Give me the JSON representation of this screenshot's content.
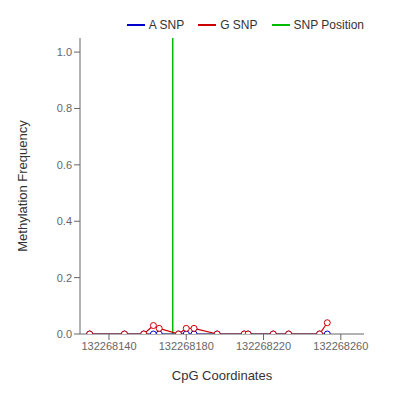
{
  "chart_data": {
    "type": "line",
    "xlabel": "CpG Coordinates",
    "ylabel": "Methylation Frequency",
    "x": [
      132268130,
      132268148,
      132268158,
      132268163,
      132268166,
      132268176,
      132268180,
      132268184,
      132268196,
      132268210,
      132268212,
      132268225,
      132268233,
      132268249,
      132268253
    ],
    "series": [
      {
        "name": "A SNP",
        "color": "#0000cc",
        "marker": "circle",
        "values": [
          0.0,
          0.0,
          0.0,
          0.0,
          0.0,
          0.0,
          0.0,
          0.0,
          0.0,
          0.0,
          0.0,
          0.0,
          0.0,
          0.0,
          0.0
        ]
      },
      {
        "name": "G SNP",
        "color": "#cc0000",
        "marker": "circle",
        "values": [
          0.0,
          0.0,
          0.0,
          0.03,
          0.02,
          0.0,
          0.02,
          0.02,
          0.0,
          0.0,
          0.0,
          0.0,
          0.0,
          0.0,
          0.04
        ]
      }
    ],
    "reference_lines": [
      {
        "name": "SNP Position",
        "axis": "x",
        "value": 132268173,
        "color": "#00bb00"
      }
    ],
    "xlim": [
      132268125,
      132268272
    ],
    "ylim": [
      0.0,
      1.05
    ],
    "xticks": [
      132268140,
      132268180,
      132268220,
      132268260
    ],
    "yticks": [
      {
        "value": 0.0,
        "label": "0.0"
      },
      0.2,
      0.4,
      0.6,
      0.8,
      {
        "value": 1.0,
        "label": "1.0"
      }
    ],
    "grid": false,
    "legend": "upper right"
  }
}
